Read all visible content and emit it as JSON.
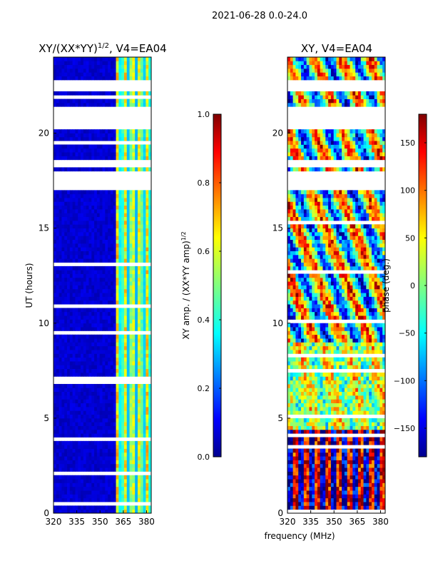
{
  "suptitle": "2021-06-28 0.0-24.0",
  "chart_data": [
    {
      "type": "heatmap",
      "title": "XY/(XX*YY)^1/2, V4=EA04",
      "title_main": "XY/(XX*YY)",
      "title_sup": "1/2",
      "title_tail": ", V4=EA04",
      "xlabel": "",
      "ylabel": "UT (hours)",
      "xlim": [
        320,
        383
      ],
      "ylim": [
        0,
        24
      ],
      "xticks": [
        320,
        335,
        350,
        365,
        380
      ],
      "yticks": [
        0,
        5,
        10,
        15,
        20
      ],
      "colorbar": {
        "label": "XY amp. / (XX*YY amp)^1/2",
        "label_main": "XY amp. / (XX*YY amp)",
        "label_sup": "1/2",
        "range": [
          0.0,
          1.0
        ],
        "ticks": [
          "0.0",
          "0.2",
          "0.4",
          "0.6",
          "0.8",
          "1.0"
        ],
        "tick_values": [
          0,
          0.2,
          0.4,
          0.6,
          0.8,
          1.0
        ]
      },
      "low_value_region": {
        "x": [
          320,
          360
        ],
        "value": 0.08
      },
      "high_value_region": {
        "x": [
          360,
          383
        ],
        "value_range": [
          0.3,
          0.7
        ]
      },
      "flagged_gaps_hours": [
        [
          22.2,
          22.9
        ],
        [
          20.3,
          21.4
        ],
        [
          17.0,
          18.0
        ],
        [
          18.3,
          18.7
        ]
      ]
    },
    {
      "type": "heatmap",
      "title": "XY, V4=EA04",
      "xlabel": "frequency (MHz)",
      "ylabel": "",
      "xlim": [
        320,
        383
      ],
      "ylim": [
        0,
        24
      ],
      "xticks": [
        320,
        335,
        350,
        365,
        380
      ],
      "yticks": [
        0,
        5,
        10,
        15,
        20
      ],
      "colorbar": {
        "label": "phase (deg.)",
        "range": [
          -180,
          180
        ],
        "ticks": [
          "−150",
          "−100",
          "−50",
          "0",
          "50",
          "100",
          "150"
        ],
        "tick_values": [
          -150,
          -100,
          -50,
          0,
          50,
          100,
          150
        ]
      },
      "flagged_gaps_hours": [
        [
          22.2,
          22.9
        ],
        [
          20.3,
          21.4
        ],
        [
          17.0,
          18.0
        ],
        [
          18.3,
          18.7
        ]
      ]
    }
  ],
  "colors": {
    "jet_dark_blue": "#00008f",
    "jet_blue": "#0000ff",
    "jet_cyan": "#00ffff",
    "jet_yellow": "#ffff00",
    "jet_red": "#ff0000",
    "jet_dark_red": "#800000"
  }
}
